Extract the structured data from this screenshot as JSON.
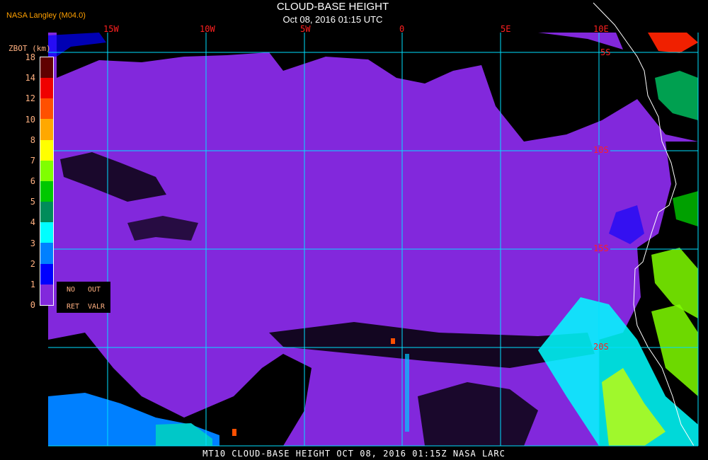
{
  "header": {
    "organization": "NASA Langley (M04.0)",
    "title": "CLOUD-BASE HEIGHT",
    "subtitle": "Oct 08, 2016 01:15 UTC"
  },
  "footer": "MT10   CLOUD-BASE HEIGHT   OCT 08, 2016 01:15Z   NASA LARC",
  "legend": {
    "unit": "ZBOT (km)",
    "labels": [
      "18",
      "14",
      "12",
      "10",
      "8",
      "7",
      "6",
      "5",
      "4",
      "3",
      "2",
      "1",
      "0"
    ],
    "colors": [
      "#600000",
      "#f00000",
      "#ff5000",
      "#ffa800",
      "#ffff00",
      "#80ff00",
      "#00c800",
      "#008c5a",
      "#00ffff",
      "#0080ff",
      "#0000ff",
      "#8228dc"
    ],
    "no_ret": {
      "line1a": "NO",
      "line1b": "OUT",
      "line2a": "RET",
      "line2b": "VALR"
    }
  },
  "grid": {
    "longitudes": [
      "15W",
      "10W",
      "5W",
      "0",
      "5E",
      "10E"
    ],
    "latitudes": [
      "5S",
      "10S",
      "15S",
      "20S"
    ],
    "line_color": "#00e0ff"
  },
  "colors": {
    "no_cloud": "#000000",
    "coastline": "#ffffff",
    "low_cloud": "#8228dc"
  }
}
